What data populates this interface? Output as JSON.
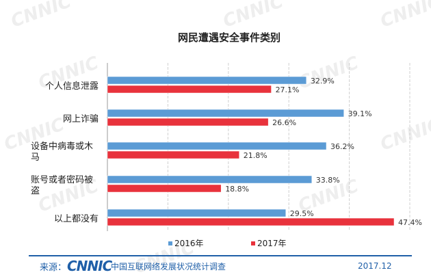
{
  "chart_data": {
    "type": "bar",
    "orientation": "horizontal",
    "title": "网民遭遇安全事件类别",
    "categories": [
      "个人信息泄露",
      "网上诈骗",
      "设备中病毒或木马",
      "账号或者密码被盗",
      "以上都没有"
    ],
    "category_lines": [
      [
        "个人信息泄露"
      ],
      [
        "网上诈骗"
      ],
      [
        "设备中病毒或木",
        "马"
      ],
      [
        "账号或者密码被",
        "盗"
      ],
      [
        "以上都没有"
      ]
    ],
    "series": [
      {
        "name": "2016年",
        "values": [
          32.9,
          39.1,
          36.2,
          33.8,
          29.5
        ],
        "labels": [
          "32.9%",
          "39.1%",
          "36.2%",
          "33.8%",
          "29.5%"
        ],
        "color": "#5b9bd5"
      },
      {
        "name": "2017年",
        "values": [
          27.1,
          26.6,
          21.8,
          18.8,
          47.4
        ],
        "labels": [
          "27.1%",
          "26.6%",
          "21.8%",
          "18.8%",
          "47.4%"
        ],
        "color": "#e8323c"
      }
    ],
    "xlim": [
      0,
      50
    ],
    "grid": true,
    "legend_position": "bottom"
  },
  "watermark": "CNNIC",
  "footer": {
    "source_label": "来源：",
    "logo_text": "CNNIC",
    "survey_name": "中国互联网络发展状况统计调查",
    "date": "2017.12"
  },
  "colors": {
    "accent": "#1f5fa8",
    "series_2016": "#5b9bd5",
    "series_2017": "#e8323c"
  }
}
